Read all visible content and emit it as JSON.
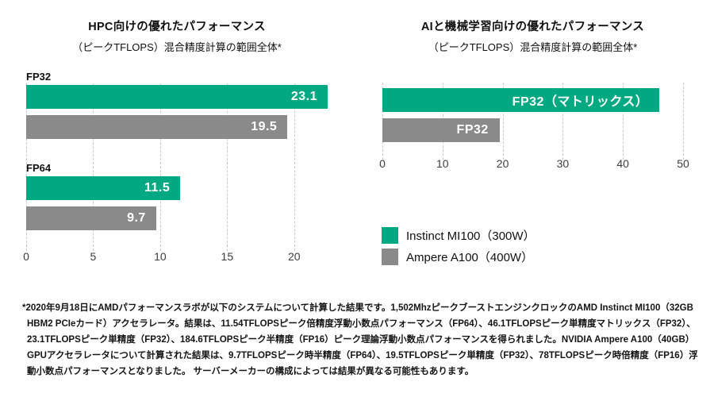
{
  "colors": {
    "green": "#01A982",
    "gray": "#8A8A8A",
    "grid": "#C9C9C9",
    "axis_text": "#3D3D3D",
    "bar_text": "#FFFFFF",
    "text": "#101010"
  },
  "chart_data": [
    {
      "type": "bar",
      "orientation": "horizontal",
      "title": "HPC向けの優れたパフォーマンス",
      "subtitle": "（ピークTFLOPS）混合精度計算の範囲全体*",
      "categories": [
        "FP32",
        "FP64"
      ],
      "series": [
        {
          "name": "Instinct MI100（300W）",
          "color_key": "green",
          "values": [
            23.1,
            11.5
          ]
        },
        {
          "name": "Ampere A100（400W）",
          "color_key": "gray",
          "values": [
            19.5,
            9.7
          ]
        }
      ],
      "xlim": [
        0,
        22.5
      ],
      "xticks": [
        0,
        5,
        10,
        15,
        20
      ],
      "grid": "dashed-vertical",
      "value_labels": "inside-end"
    },
    {
      "type": "bar",
      "orientation": "horizontal",
      "title": "AIと機械学習向けの優れたパフォーマンス",
      "subtitle": "（ピークTFLOPS）混合精度計算の範囲全体*",
      "bars": [
        {
          "label": "FP32（マトリックス）",
          "series": "Instinct MI100（300W）",
          "value": 46.1,
          "color_key": "green"
        },
        {
          "label": "FP32",
          "series": "Ampere A100（400W）",
          "value": 19.5,
          "color_key": "gray"
        }
      ],
      "xlim": [
        0,
        50
      ],
      "xticks": [
        0,
        10,
        20,
        30,
        40,
        50
      ],
      "grid": "dashed-vertical",
      "bar_labels": "inside-end"
    }
  ],
  "legend": {
    "items": [
      {
        "label": "Instinct MI100（300W）",
        "color_key": "green"
      },
      {
        "label": "Ampere A100（400W）",
        "color_key": "gray"
      }
    ]
  },
  "footnote": "*2020年9月18日にAMDパフォーマンスラボが以下のシステムについて計算した結果です。1,502MhzピークブーストエンジンクロックのAMD Instinct MI100（32GB HBM2 PCIeカード）アクセラレータ。結果は、11.54TFLOPSピーク倍精度浮動小数点パフォーマンス（FP64）、46.1TFLOPSピーク単精度マトリックス（FP32）、23.1TFLOPSピーク単精度（FP32）、184.6TFLOPSピーク半精度（FP16）ピーク理論浮動小数点パフォーマンスを得られました。NVIDIA Ampere A100（40GB）GPUアクセラレータについて計算された結果は、9.7TFLOPSピーク時半精度（FP64）、19.5TFLOPSピーク単精度（FP32）、78TFLOPSピーク時倍精度（FP16）浮動小数点パフォーマンスとなりました。 サーバーメーカーの構成によっては結果が異なる可能性もあります。"
}
